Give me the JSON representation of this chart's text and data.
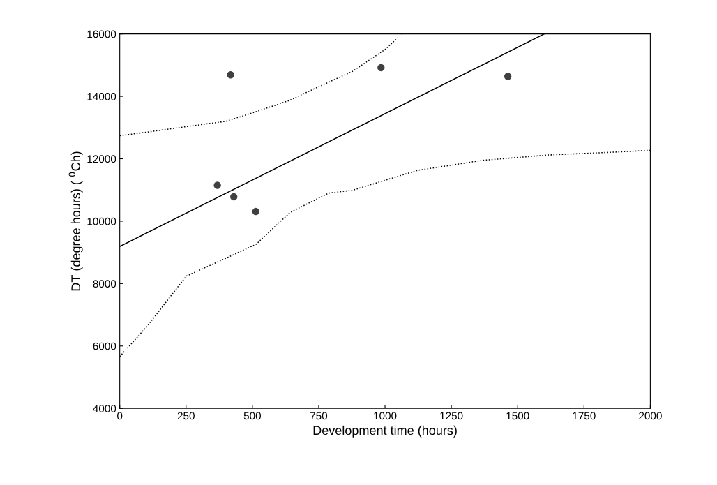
{
  "chart_data": {
    "type": "scatter",
    "xlabel": "Development time (hours)",
    "ylabel": "DT (degree hours) ( $^{0}$Ch)",
    "xlim": [
      0,
      2000
    ],
    "xticks": [
      0,
      250,
      500,
      750,
      1000,
      1250,
      1500,
      1750,
      2000
    ],
    "ylim": [
      4000,
      16000
    ],
    "yticks": [
      4000,
      6000,
      8000,
      10000,
      12000,
      14000,
      16000
    ],
    "grid": false,
    "legend": false,
    "series": [
      {
        "color": "#404040",
        "marker": "circle",
        "x": [
          368,
          418,
          430,
          513,
          985,
          1463
        ],
        "values": [
          11150,
          14690,
          10780,
          10310,
          14920,
          14640
        ]
      },
      {
        "type": "line",
        "color": "#000000",
        "line_style": "solid",
        "marker": "none",
        "x": [
          0,
          1600
        ],
        "values": [
          9190,
          16000
        ]
      },
      {
        "type": "line",
        "color": "#000000",
        "line_style": "dotted",
        "marker": "none",
        "x": [
          0,
          100,
          250,
          400,
          500,
          640,
          740,
          877,
          1000,
          1064
        ],
        "values": [
          12740,
          12850,
          13030,
          13200,
          13470,
          13870,
          14270,
          14800,
          15500,
          16000
        ]
      },
      {
        "type": "line",
        "color": "#000000",
        "line_style": "dotted",
        "marker": "none",
        "x": [
          0,
          104,
          251,
          397,
          514,
          642,
          788,
          877,
          1123,
          1368,
          1613,
          1858,
          2000
        ],
        "values": [
          5660,
          6640,
          8240,
          8800,
          9260,
          10280,
          10900,
          10990,
          11630,
          11950,
          12120,
          12210,
          12270
        ]
      }
    ]
  }
}
